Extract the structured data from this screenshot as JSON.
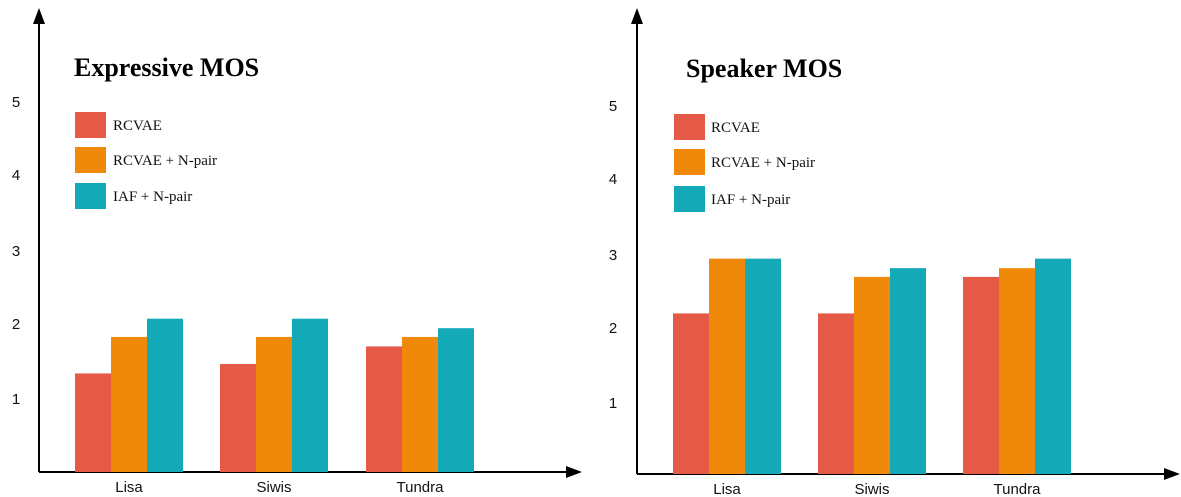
{
  "chart_data": [
    {
      "type": "bar",
      "title": "Expressive MOS",
      "xlabel": "",
      "ylabel": "",
      "ylim": [
        0,
        5
      ],
      "yticks": [
        1,
        2,
        3,
        4,
        5
      ],
      "categories": [
        "Lisa",
        "Siwis",
        "Tundra"
      ],
      "series": [
        {
          "name": "RCVAE",
          "color": "#e55a47",
          "values": [
            1.35,
            1.48,
            1.72
          ]
        },
        {
          "name": "RCVAE + N-pair",
          "color": "#f0890a",
          "values": [
            1.85,
            1.85,
            1.85
          ]
        },
        {
          "name": "IAF + N-pair",
          "color": "#13a9b7",
          "values": [
            2.1,
            2.1,
            1.97
          ]
        }
      ],
      "grid": false,
      "legend_position": "top-left"
    },
    {
      "type": "bar",
      "title": "Speaker MOS",
      "xlabel": "",
      "ylabel": "",
      "ylim": [
        0,
        5
      ],
      "yticks": [
        1,
        2,
        3,
        4,
        5
      ],
      "categories": [
        "Lisa",
        "Siwis",
        "Tundra"
      ],
      "series": [
        {
          "name": "RCVAE",
          "color": "#e55a47",
          "values": [
            2.2,
            2.2,
            2.7
          ]
        },
        {
          "name": "RCVAE + N-pair",
          "color": "#f0890a",
          "values": [
            2.95,
            2.7,
            2.82
          ]
        },
        {
          "name": "IAF + N-pair",
          "color": "#13a9b7",
          "values": [
            2.95,
            2.82,
            2.95
          ]
        }
      ],
      "grid": false,
      "legend_position": "top-left"
    }
  ]
}
